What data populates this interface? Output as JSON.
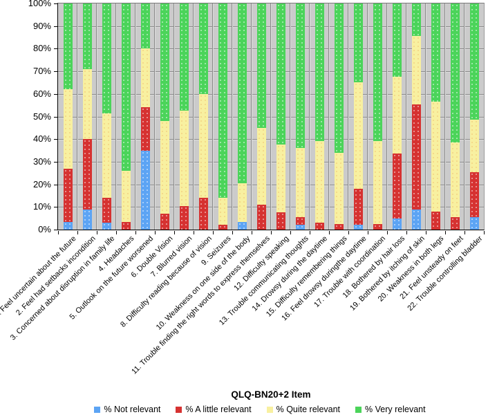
{
  "chart_data": {
    "type": "bar",
    "stacked": true,
    "orientation": "vertical",
    "title": "",
    "xlabel": "QLQ-BN20+2 Item",
    "ylabel": "",
    "ylim": [
      0,
      100
    ],
    "grid": true,
    "legend_position": "bottom",
    "yticks": [
      "0%",
      "10%",
      "20%",
      "30%",
      "40%",
      "50%",
      "60%",
      "70%",
      "80%",
      "90%",
      "100%"
    ],
    "categories": [
      "1. Feel uncertain about the future",
      "2. Feel had setbacks incondition",
      "3. Concerned about disruption in family life",
      "4. Headaches",
      "5. Outlook on the future worsened",
      "6. Double Vision",
      "7. Blurred vision",
      "8. Difficulty reading because of vision",
      "9. Seizures",
      "10. Weakness on one side of the body",
      "11. Trouble finding the right words to express themselves",
      "12. Difficulty speaking",
      "13. Trouble communicating thoughts",
      "14. Drowsy during the daytime",
      "15. Difficulty remembering things",
      "16. Feel drowsy duringthe daytime",
      "17. Trouble with coordination",
      "18. Bothered by hair loss",
      "19. Bothered by itching of skin",
      "20. Weakness in both legs",
      "21. Feel unsteady on feet",
      "22. Trouble controlling bladder"
    ],
    "series": [
      {
        "name": "% Not relevant",
        "color": "#5CA4F4",
        "values": [
          3.5,
          9,
          3,
          0,
          35,
          0,
          0,
          0,
          0,
          3.5,
          0,
          0,
          2,
          0,
          0,
          2,
          0,
          5,
          9,
          0,
          0,
          5.5
        ]
      },
      {
        "name": "% A little relevant",
        "color": "#D63231",
        "values": [
          23.5,
          31,
          11,
          3.5,
          19,
          7,
          10.5,
          14,
          2,
          0,
          11,
          7.5,
          3.5,
          3,
          2.5,
          16,
          2.5,
          28.5,
          46.5,
          8,
          5.5,
          20
        ]
      },
      {
        "name": "% Quite relevant",
        "color": "#F8F0A0",
        "values": [
          35,
          31,
          37.5,
          22.5,
          26,
          41,
          42,
          46,
          12,
          17,
          34,
          30,
          30.5,
          36,
          31.5,
          47,
          36.5,
          34,
          30,
          48.5,
          33,
          23
        ]
      },
      {
        "name": "% Very relevant",
        "color": "#4BD45A",
        "values": [
          38,
          29,
          48.5,
          74,
          20,
          52,
          47.5,
          40,
          86,
          79.5,
          55,
          62.5,
          64,
          61,
          66,
          35,
          61,
          32.5,
          14.5,
          43.5,
          61.5,
          51.5
        ]
      }
    ],
    "colors": {
      "plot_bg": "#CBCBCB",
      "gridline": "#8A8A8A",
      "axis": "#000000"
    }
  }
}
